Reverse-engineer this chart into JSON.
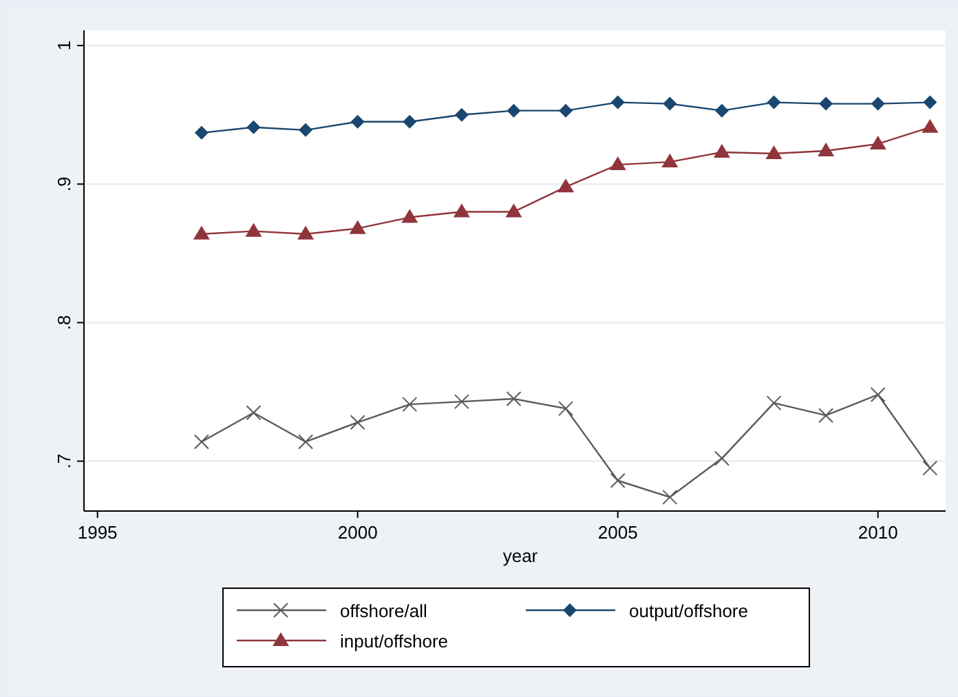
{
  "chart_data": {
    "type": "line",
    "xlabel": "year",
    "x": [
      1997,
      1998,
      1999,
      2000,
      2001,
      2002,
      2003,
      2004,
      2005,
      2006,
      2007,
      2008,
      2009,
      2010,
      2011
    ],
    "series": [
      {
        "name": "offshore/all",
        "color": "#5a5a5a",
        "marker": "cross",
        "values": [
          0.714,
          0.735,
          0.714,
          0.728,
          0.741,
          0.743,
          0.745,
          0.738,
          0.686,
          0.674,
          0.702,
          0.742,
          0.733,
          0.748,
          0.695
        ]
      },
      {
        "name": "output/offshore",
        "color": "#1a476f",
        "marker": "diamond",
        "values": [
          0.937,
          0.941,
          0.939,
          0.945,
          0.945,
          0.95,
          0.953,
          0.953,
          0.959,
          0.958,
          0.953,
          0.959,
          0.958,
          0.958,
          0.959
        ]
      },
      {
        "name": "input/offshore",
        "color": "#90353b",
        "marker": "triangle",
        "values": [
          0.864,
          0.866,
          0.864,
          0.868,
          0.876,
          0.88,
          0.88,
          0.898,
          0.914,
          0.916,
          0.923,
          0.922,
          0.924,
          0.929,
          0.941
        ]
      }
    ],
    "xlim": [
      1994.74,
      2011.3
    ],
    "xticks": [
      1995,
      2000,
      2005,
      2010
    ],
    "ylim": [
      0.664,
      1.011
    ],
    "yticks": [
      {
        "value": 0.7,
        "label": ".7"
      },
      {
        "value": 0.8,
        "label": ".8"
      },
      {
        "value": 0.9,
        "label": ".9"
      },
      1
    ],
    "grid": "y",
    "legend": "bottom"
  }
}
